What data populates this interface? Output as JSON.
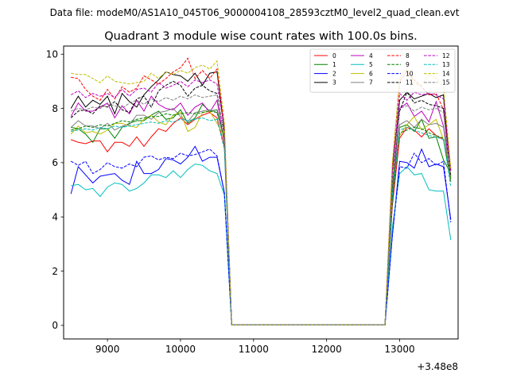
{
  "suptitle": "Data file: modeM0/AS1A10_045T06_9000004108_28593cztM0_level2_quad_clean.evt",
  "chart_data": {
    "type": "line",
    "title": "Quadrant 3 module wise count rates with 100.0s bins.",
    "xlabel": "",
    "ylabel": "",
    "offset_label": "+3.48e8",
    "xlim": [
      8400,
      13800
    ],
    "ylim": [
      -0.5,
      10.3
    ],
    "xticks": [
      9000,
      10000,
      11000,
      12000,
      13000
    ],
    "xtick_labels": [
      "9000",
      "10000",
      "11000",
      "12000",
      "13000"
    ],
    "yticks": [
      0,
      2,
      4,
      6,
      8,
      10
    ],
    "ytick_labels": [
      "0",
      "2",
      "4",
      "6",
      "8",
      "10"
    ],
    "grid": false,
    "legend_position": "top-right",
    "legend_columns": 4,
    "x": [
      8500,
      8600,
      8700,
      8800,
      8900,
      9000,
      9100,
      9200,
      9300,
      9400,
      9500,
      9600,
      9700,
      9800,
      9900,
      10000,
      10100,
      10200,
      10300,
      10400,
      10500,
      10600,
      10700,
      10800,
      10900,
      11000,
      11100,
      11200,
      11300,
      11400,
      11500,
      11600,
      11700,
      11800,
      11900,
      12000,
      12100,
      12200,
      12300,
      12400,
      12500,
      12600,
      12700,
      12800,
      12900,
      13000,
      13100,
      13200,
      13300,
      13400,
      13500,
      13600,
      13700
    ],
    "series": [
      {
        "name": "0",
        "color": "#ff0000",
        "dash": false,
        "values": [
          6.85,
          6.75,
          6.7,
          6.8,
          6.8,
          6.4,
          6.75,
          6.75,
          6.6,
          6.95,
          6.6,
          6.95,
          7.25,
          7.15,
          7.45,
          7.65,
          7.4,
          7.6,
          7.75,
          7.85,
          7.65,
          6.6,
          0.02,
          0.02,
          0.02,
          0.02,
          0.02,
          0.02,
          0.02,
          0.02,
          0.02,
          0.02,
          0.02,
          0.02,
          0.02,
          0.02,
          0.02,
          0.02,
          0.02,
          0.02,
          0.02,
          0.02,
          0.02,
          0.02,
          4.4,
          6.9,
          7.3,
          7.2,
          6.95,
          7.25,
          7.0,
          6.85,
          5.55
        ]
      },
      {
        "name": "1",
        "color": "#008000",
        "dash": false,
        "values": [
          7.3,
          7.25,
          7.05,
          6.75,
          7.25,
          7.25,
          6.9,
          7.3,
          7.45,
          7.55,
          7.55,
          7.75,
          7.9,
          7.6,
          7.65,
          7.95,
          7.45,
          7.65,
          8.15,
          7.9,
          7.95,
          6.8,
          0.02,
          0.02,
          0.02,
          0.02,
          0.02,
          0.02,
          0.02,
          0.02,
          0.02,
          0.02,
          0.02,
          0.02,
          0.02,
          0.02,
          0.02,
          0.02,
          0.02,
          0.02,
          0.02,
          0.02,
          0.02,
          0.02,
          4.6,
          7.3,
          7.4,
          7.15,
          7.6,
          6.9,
          6.95,
          6.1,
          5.6
        ]
      },
      {
        "name": "2",
        "color": "#0000ff",
        "dash": false,
        "values": [
          4.85,
          5.85,
          5.55,
          5.25,
          5.5,
          5.55,
          5.6,
          5.35,
          5.2,
          6.05,
          5.6,
          5.6,
          5.75,
          6.15,
          6.1,
          5.95,
          6.2,
          6.6,
          6.05,
          6.2,
          6.2,
          4.9,
          0.02,
          0.02,
          0.02,
          0.02,
          0.02,
          0.02,
          0.02,
          0.02,
          0.02,
          0.02,
          0.02,
          0.02,
          0.02,
          0.02,
          0.02,
          0.02,
          0.02,
          0.02,
          0.02,
          0.02,
          0.02,
          0.02,
          3.3,
          6.05,
          6.0,
          5.8,
          6.5,
          5.85,
          5.95,
          5.85,
          3.9
        ]
      },
      {
        "name": "3",
        "color": "#000000",
        "dash": false,
        "values": [
          8.0,
          8.45,
          8.05,
          8.3,
          8.15,
          8.45,
          7.8,
          8.55,
          8.25,
          8.05,
          8.5,
          8.8,
          9.05,
          9.35,
          9.25,
          9.2,
          9.0,
          9.3,
          8.85,
          9.3,
          9.35,
          7.15,
          0.02,
          0.02,
          0.02,
          0.02,
          0.02,
          0.02,
          0.02,
          0.02,
          0.02,
          0.02,
          0.02,
          0.02,
          0.02,
          0.02,
          0.02,
          0.02,
          0.02,
          0.02,
          0.02,
          0.02,
          0.02,
          0.02,
          5.7,
          8.3,
          8.6,
          8.35,
          8.45,
          8.55,
          8.4,
          8.5,
          5.4
        ]
      },
      {
        "name": "4",
        "color": "#bf00bf",
        "dash": false,
        "values": [
          7.7,
          8.2,
          7.9,
          7.9,
          8.05,
          8.2,
          7.65,
          8.1,
          7.8,
          8.3,
          7.9,
          8.45,
          8.15,
          8.0,
          7.95,
          8.2,
          7.75,
          8.05,
          8.2,
          7.85,
          8.3,
          6.75,
          0.02,
          0.02,
          0.02,
          0.02,
          0.02,
          0.02,
          0.02,
          0.02,
          0.02,
          0.02,
          0.02,
          0.02,
          0.02,
          0.02,
          0.02,
          0.02,
          0.02,
          0.02,
          0.02,
          0.02,
          0.02,
          0.02,
          4.9,
          8.0,
          8.2,
          7.7,
          7.9,
          7.5,
          8.25,
          7.35,
          5.7
        ]
      },
      {
        "name": "5",
        "color": "#00bfbf",
        "dash": false,
        "values": [
          5.15,
          5.2,
          5.0,
          5.05,
          4.75,
          5.1,
          5.25,
          5.2,
          4.95,
          5.05,
          5.25,
          5.55,
          5.55,
          5.45,
          5.7,
          5.45,
          5.75,
          5.95,
          5.9,
          5.7,
          5.6,
          4.8,
          0.02,
          0.02,
          0.02,
          0.02,
          0.02,
          0.02,
          0.02,
          0.02,
          0.02,
          0.02,
          0.02,
          0.02,
          0.02,
          0.02,
          0.02,
          0.02,
          0.02,
          0.02,
          0.02,
          0.02,
          0.02,
          0.02,
          3.6,
          5.6,
          5.85,
          5.55,
          5.6,
          5.0,
          4.95,
          4.95,
          3.15
        ]
      },
      {
        "name": "6",
        "color": "#bfbf00",
        "dash": false,
        "values": [
          7.05,
          7.35,
          7.1,
          7.15,
          7.05,
          7.2,
          7.45,
          7.45,
          7.35,
          7.3,
          7.6,
          7.75,
          7.5,
          7.4,
          7.75,
          7.85,
          7.15,
          7.3,
          7.85,
          7.9,
          7.45,
          6.95,
          0.02,
          0.02,
          0.02,
          0.02,
          0.02,
          0.02,
          0.02,
          0.02,
          0.02,
          0.02,
          0.02,
          0.02,
          0.02,
          0.02,
          0.02,
          0.02,
          0.02,
          0.02,
          0.02,
          0.02,
          0.02,
          0.02,
          5.2,
          7.0,
          7.4,
          7.7,
          7.2,
          7.4,
          7.6,
          6.85,
          5.4
        ]
      },
      {
        "name": "7",
        "color": "#808080",
        "dash": false,
        "values": [
          7.3,
          7.55,
          7.35,
          7.35,
          7.25,
          7.45,
          7.2,
          7.35,
          7.4,
          7.75,
          7.75,
          7.6,
          7.85,
          7.9,
          8.0,
          7.7,
          7.5,
          7.85,
          7.9,
          7.95,
          7.85,
          6.9,
          0.02,
          0.02,
          0.02,
          0.02,
          0.02,
          0.02,
          0.02,
          0.02,
          0.02,
          0.02,
          0.02,
          0.02,
          0.02,
          0.02,
          0.02,
          0.02,
          0.02,
          0.02,
          0.02,
          0.02,
          0.02,
          0.02,
          4.9,
          7.4,
          7.55,
          7.3,
          7.6,
          7.4,
          7.45,
          7.3,
          5.3
        ]
      },
      {
        "name": "8",
        "color": "#ff0000",
        "dash": true,
        "values": [
          9.15,
          9.1,
          8.7,
          8.45,
          8.3,
          8.7,
          8.35,
          8.8,
          8.6,
          8.75,
          9.2,
          9.05,
          8.9,
          9.1,
          9.35,
          9.5,
          9.85,
          9.1,
          9.4,
          9.1,
          9.45,
          7.3,
          0.02,
          0.02,
          0.02,
          0.02,
          0.02,
          0.02,
          0.02,
          0.02,
          0.02,
          0.02,
          0.02,
          0.02,
          0.02,
          0.02,
          0.02,
          0.02,
          0.02,
          0.02,
          0.02,
          0.02,
          0.02,
          0.02,
          5.9,
          9.0,
          9.35,
          9.05,
          8.8,
          8.5,
          8.55,
          7.95,
          5.75
        ]
      },
      {
        "name": "9",
        "color": "#008000",
        "dash": true,
        "values": [
          7.2,
          7.25,
          7.35,
          7.3,
          7.4,
          7.35,
          7.45,
          7.55,
          7.5,
          7.6,
          7.65,
          7.7,
          7.7,
          7.8,
          7.75,
          7.8,
          7.85,
          7.8,
          7.85,
          7.9,
          7.85,
          6.9,
          0.02,
          0.02,
          0.02,
          0.02,
          0.02,
          0.02,
          0.02,
          0.02,
          0.02,
          0.02,
          0.02,
          0.02,
          0.02,
          0.02,
          0.02,
          0.02,
          0.02,
          0.02,
          0.02,
          0.02,
          0.02,
          0.02,
          5.0,
          7.1,
          7.2,
          7.3,
          7.25,
          7.1,
          7.0,
          6.9,
          5.3
        ]
      },
      {
        "name": "10",
        "color": "#0000ff",
        "dash": true,
        "values": [
          6.05,
          5.9,
          6.05,
          5.6,
          5.75,
          6.0,
          5.85,
          5.8,
          5.95,
          5.85,
          6.2,
          6.25,
          6.1,
          6.2,
          6.15,
          6.35,
          6.25,
          6.3,
          6.4,
          6.5,
          6.25,
          4.9,
          0.02,
          0.02,
          0.02,
          0.02,
          0.02,
          0.02,
          0.02,
          0.02,
          0.02,
          0.02,
          0.02,
          0.02,
          0.02,
          0.02,
          0.02,
          0.02,
          0.02,
          0.02,
          0.02,
          0.02,
          0.02,
          0.02,
          3.3,
          5.85,
          5.8,
          6.35,
          6.0,
          6.15,
          5.9,
          6.05,
          3.8
        ]
      },
      {
        "name": "11",
        "color": "#000000",
        "dash": true,
        "values": [
          7.65,
          7.9,
          7.95,
          7.8,
          8.1,
          8.05,
          8.25,
          7.95,
          7.85,
          8.35,
          8.45,
          8.05,
          8.65,
          8.85,
          9.0,
          8.85,
          8.45,
          8.75,
          8.85,
          8.65,
          8.55,
          7.0,
          0.02,
          0.02,
          0.02,
          0.02,
          0.02,
          0.02,
          0.02,
          0.02,
          0.02,
          0.02,
          0.02,
          0.02,
          0.02,
          0.02,
          0.02,
          0.02,
          0.02,
          0.02,
          0.02,
          0.02,
          0.02,
          0.02,
          5.2,
          7.9,
          8.6,
          8.2,
          8.3,
          8.15,
          8.1,
          8.0,
          5.45
        ]
      },
      {
        "name": "12",
        "color": "#bf00bf",
        "dash": true,
        "values": [
          8.5,
          8.65,
          8.4,
          8.55,
          8.45,
          8.55,
          8.4,
          8.7,
          8.45,
          8.7,
          8.75,
          8.6,
          8.95,
          8.75,
          8.85,
          9.0,
          8.8,
          9.05,
          8.95,
          9.05,
          8.9,
          7.3,
          0.02,
          0.02,
          0.02,
          0.02,
          0.02,
          0.02,
          0.02,
          0.02,
          0.02,
          0.02,
          0.02,
          0.02,
          0.02,
          0.02,
          0.02,
          0.02,
          0.02,
          0.02,
          0.02,
          0.02,
          0.02,
          0.02,
          5.6,
          8.55,
          8.3,
          8.6,
          8.5,
          8.55,
          8.5,
          8.35,
          5.7
        ]
      },
      {
        "name": "13",
        "color": "#00bfbf",
        "dash": true,
        "values": [
          7.15,
          7.2,
          7.25,
          7.2,
          7.3,
          7.25,
          7.35,
          7.3,
          7.35,
          7.4,
          7.45,
          7.5,
          7.45,
          7.55,
          7.5,
          7.6,
          7.55,
          7.6,
          7.65,
          7.55,
          7.6,
          6.5,
          0.02,
          0.02,
          0.02,
          0.02,
          0.02,
          0.02,
          0.02,
          0.02,
          0.02,
          0.02,
          0.02,
          0.02,
          0.02,
          0.02,
          0.02,
          0.02,
          0.02,
          0.02,
          0.02,
          0.02,
          0.02,
          0.02,
          4.8,
          7.2,
          7.3,
          7.2,
          7.1,
          7.0,
          6.95,
          6.85,
          5.1
        ]
      },
      {
        "name": "14",
        "color": "#bfbf00",
        "dash": true,
        "values": [
          9.3,
          9.25,
          9.25,
          9.1,
          8.95,
          9.2,
          9.0,
          8.95,
          8.9,
          8.95,
          9.0,
          9.3,
          9.1,
          9.35,
          9.25,
          9.4,
          9.3,
          9.5,
          9.6,
          9.45,
          9.75,
          7.5,
          0.02,
          0.02,
          0.02,
          0.02,
          0.02,
          0.02,
          0.02,
          0.02,
          0.02,
          0.02,
          0.02,
          0.02,
          0.02,
          0.02,
          0.02,
          0.02,
          0.02,
          0.02,
          0.02,
          0.02,
          0.02,
          0.02,
          6.0,
          9.1,
          9.5,
          8.9,
          8.85,
          9.25,
          9.1,
          8.8,
          5.8
        ]
      },
      {
        "name": "15",
        "color": "#808080",
        "dash": true,
        "values": [
          7.9,
          8.0,
          7.95,
          8.05,
          8.0,
          8.15,
          8.1,
          8.0,
          8.2,
          8.3,
          8.15,
          8.35,
          8.25,
          8.4,
          8.3,
          8.45,
          8.35,
          8.5,
          8.4,
          8.45,
          8.5,
          7.0,
          0.02,
          0.02,
          0.02,
          0.02,
          0.02,
          0.02,
          0.02,
          0.02,
          0.02,
          0.02,
          0.02,
          0.02,
          0.02,
          0.02,
          0.02,
          0.02,
          0.02,
          0.02,
          0.02,
          0.02,
          0.02,
          0.02,
          5.3,
          8.0,
          8.1,
          7.9,
          8.05,
          7.95,
          8.0,
          7.85,
          5.5
        ]
      }
    ]
  }
}
